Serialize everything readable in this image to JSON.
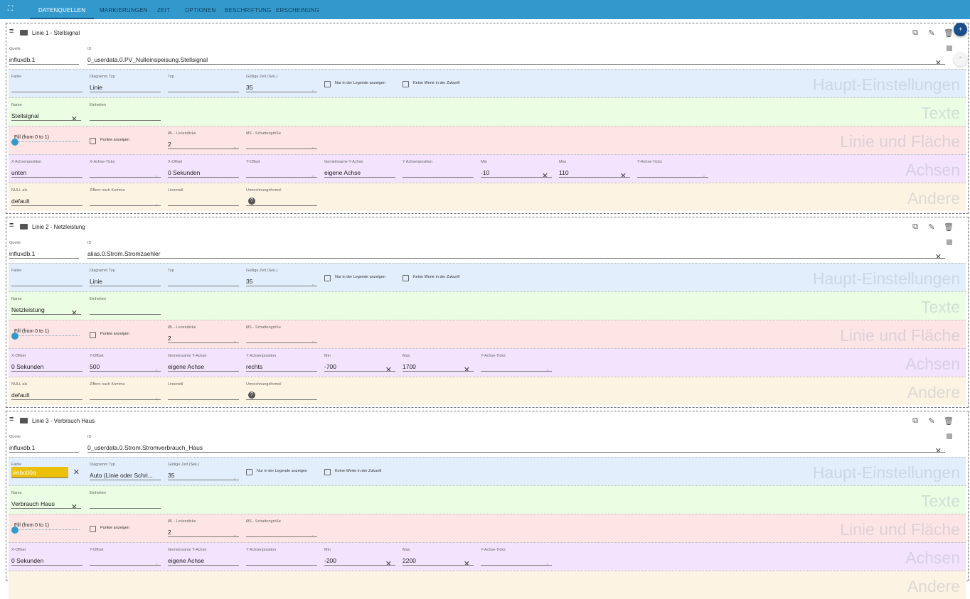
{
  "tabs": [
    "DATENQUELLEN",
    "MARKIERUNGEN",
    "ZEIT",
    "OPTIONEN",
    "BESCHRIFTUNG",
    "ERSCHEINUNG"
  ],
  "active_tab": 0,
  "section_titles": {
    "haupt": "Haupt-Einstellungen",
    "texte": "Texte",
    "linie": "Linie und Fläche",
    "achsen": "Achsen",
    "andere": "Andere"
  },
  "section_colors": {
    "haupt": "#e3eefc",
    "texte": "#ebfde3",
    "linie": "#fde5e5",
    "achsen": "#f3e3fc",
    "andere": "#fdf3e3"
  },
  "accent": "#3399cc",
  "cards": [
    {
      "title": "Linie 1 - Stellsignal",
      "top": [
        {
          "label": "Quelle",
          "value": "influxdb.1",
          "kind": "select"
        },
        {
          "label": "ID",
          "value": "0_userdata.0.PV_Nulleinspeisung.Stellsignal",
          "kind": "clear",
          "wide": true
        }
      ],
      "sections": {
        "haupt": [
          {
            "label": "Farbe",
            "value": "",
            "kind": "text"
          },
          {
            "label": "Diagramm Typ",
            "value": "Linie",
            "kind": "select"
          },
          {
            "label": "Typ",
            "value": "",
            "kind": "select"
          },
          {
            "label": "Gültige Zeit (Sek.)",
            "value": "35",
            "kind": "number"
          },
          {
            "label": "Nur in der Legende anzeigen",
            "kind": "checkbox",
            "checked": false
          },
          {
            "label": "Keine Werte in der Zukunft",
            "kind": "checkbox",
            "checked": false
          }
        ],
        "texte": [
          {
            "label": "Name",
            "value": "Stellsignal",
            "kind": "clear"
          },
          {
            "label": "Einheiten",
            "value": "",
            "kind": "text"
          }
        ],
        "linie": [
          {
            "label": "Fill (from 0 to 1)",
            "value": 0,
            "kind": "slider"
          },
          {
            "label": "Punkte anzeigen",
            "kind": "checkbox",
            "checked": false
          },
          {
            "label": "ØL - Liniendicke",
            "value": "2",
            "kind": "number"
          },
          {
            "label": "ØS - Schattengröße",
            "value": "",
            "kind": "number"
          }
        ],
        "achsen": [
          {
            "label": "X Achsenposition",
            "value": "unten",
            "kind": "select"
          },
          {
            "label": "X-Achse-Ticks",
            "value": "",
            "kind": "number"
          },
          {
            "label": "X-Offset",
            "value": "0 Sekunden",
            "kind": "select"
          },
          {
            "label": "Y-Offset",
            "value": "",
            "kind": "number"
          },
          {
            "label": "Gemeinsame Y-Achse",
            "value": "eigene Achse",
            "kind": "select"
          },
          {
            "label": "Y Achsenposition",
            "value": "",
            "kind": "select"
          },
          {
            "label": "Min",
            "value": "-10",
            "kind": "clear"
          },
          {
            "label": "Max",
            "value": "110",
            "kind": "clear"
          },
          {
            "label": "Y-Achse-Ticks",
            "value": "",
            "kind": "number"
          }
        ],
        "andere": [
          {
            "label": "NULL als",
            "value": "default",
            "kind": "select"
          },
          {
            "label": "Ziffern nach Komma",
            "value": "",
            "kind": "number"
          },
          {
            "label": "Linienstil",
            "value": "",
            "kind": "select"
          },
          {
            "label": "Umrechnungsformel",
            "value": "",
            "kind": "help"
          }
        ]
      }
    },
    {
      "title": "Linie 2 - Netzleistung",
      "top": [
        {
          "label": "Quelle",
          "value": "influxdb.1",
          "kind": "select"
        },
        {
          "label": "ID",
          "value": "alias.0.Strom.Stromzaehler",
          "kind": "clear",
          "wide": true
        }
      ],
      "sections": {
        "haupt": [
          {
            "label": "Farbe",
            "value": "",
            "kind": "text"
          },
          {
            "label": "Diagramm Typ",
            "value": "Linie",
            "kind": "select"
          },
          {
            "label": "Typ",
            "value": "",
            "kind": "select"
          },
          {
            "label": "Gültige Zeit (Sek.)",
            "value": "35",
            "kind": "number"
          },
          {
            "label": "Nur in der Legende anzeigen",
            "kind": "checkbox",
            "checked": false
          },
          {
            "label": "Keine Werte in der Zukunft",
            "kind": "checkbox",
            "checked": false
          }
        ],
        "texte": [
          {
            "label": "Name",
            "value": "Netzleistung",
            "kind": "clear"
          },
          {
            "label": "Einheiten",
            "value": "",
            "kind": "text"
          }
        ],
        "linie": [
          {
            "label": "Fill (from 0 to 1)",
            "value": 0,
            "kind": "slider"
          },
          {
            "label": "Punkte anzeigen",
            "kind": "checkbox",
            "checked": false
          },
          {
            "label": "ØL - Liniendicke",
            "value": "2",
            "kind": "number"
          },
          {
            "label": "ØS - Schattengröße",
            "value": "",
            "kind": "number"
          }
        ],
        "achsen": [
          {
            "label": "X-Offset",
            "value": "0 Sekunden",
            "kind": "select"
          },
          {
            "label": "Y-Offset",
            "value": "500",
            "kind": "number"
          },
          {
            "label": "Gemeinsame Y-Achse",
            "value": "eigene Achse",
            "kind": "select"
          },
          {
            "label": "Y Achsenposition",
            "value": "rechts",
            "kind": "select"
          },
          {
            "label": "Min",
            "value": "-700",
            "kind": "clear"
          },
          {
            "label": "Max",
            "value": "1700",
            "kind": "clear"
          },
          {
            "label": "Y-Achse-Ticks",
            "value": "",
            "kind": "number"
          }
        ],
        "andere": [
          {
            "label": "NULL als",
            "value": "default",
            "kind": "select"
          },
          {
            "label": "Ziffern nach Komma",
            "value": "",
            "kind": "number"
          },
          {
            "label": "Linienstil",
            "value": "",
            "kind": "select"
          },
          {
            "label": "Umrechnungsformel",
            "value": "",
            "kind": "help"
          }
        ]
      }
    },
    {
      "title": "Linie 3 - Verbrauch Haus",
      "top": [
        {
          "label": "Quelle",
          "value": "influxdb.1",
          "kind": "select"
        },
        {
          "label": "ID",
          "value": "0_userdata.0.Strom.Stromverbrauch_Haus",
          "kind": "clear",
          "wide": true
        }
      ],
      "sections": {
        "haupt": [
          {
            "label": "Farbe",
            "value": "#ebc00a",
            "kind": "color"
          },
          {
            "label": "Diagramm Typ",
            "value": "Auto (Linie oder Schri...",
            "kind": "select"
          },
          {
            "label": "Gültige Zeit (Sek.)",
            "value": "35",
            "kind": "number"
          },
          {
            "label": "Nur in der Legende anzeigen",
            "kind": "checkbox",
            "checked": false
          },
          {
            "label": "Keine Werte in der Zukunft",
            "kind": "checkbox",
            "checked": false
          }
        ],
        "texte": [
          {
            "label": "Name",
            "value": "Verbrauch Haus",
            "kind": "clear"
          },
          {
            "label": "Einheiten",
            "value": "",
            "kind": "text"
          }
        ],
        "linie": [
          {
            "label": "Fill (from 0 to 1)",
            "value": 0,
            "kind": "slider"
          },
          {
            "label": "Punkte anzeigen",
            "kind": "checkbox",
            "checked": false
          },
          {
            "label": "ØL - Liniendicke",
            "value": "2",
            "kind": "number"
          },
          {
            "label": "ØS - Schattengröße",
            "value": "",
            "kind": "number"
          }
        ],
        "achsen": [
          {
            "label": "X-Offset",
            "value": "0 Sekunden",
            "kind": "select"
          },
          {
            "label": "Y-Offset",
            "value": "",
            "kind": "number"
          },
          {
            "label": "Gemeinsame Y-Achse",
            "value": "eigene Achse",
            "kind": "select"
          },
          {
            "label": "Y Achsenposition",
            "value": "",
            "kind": "select"
          },
          {
            "label": "Min",
            "value": "-200",
            "kind": "clear"
          },
          {
            "label": "Max",
            "value": "2200",
            "kind": "clear"
          },
          {
            "label": "Y-Achse-Ticks",
            "value": "",
            "kind": "number"
          }
        ],
        "andere": []
      }
    }
  ]
}
